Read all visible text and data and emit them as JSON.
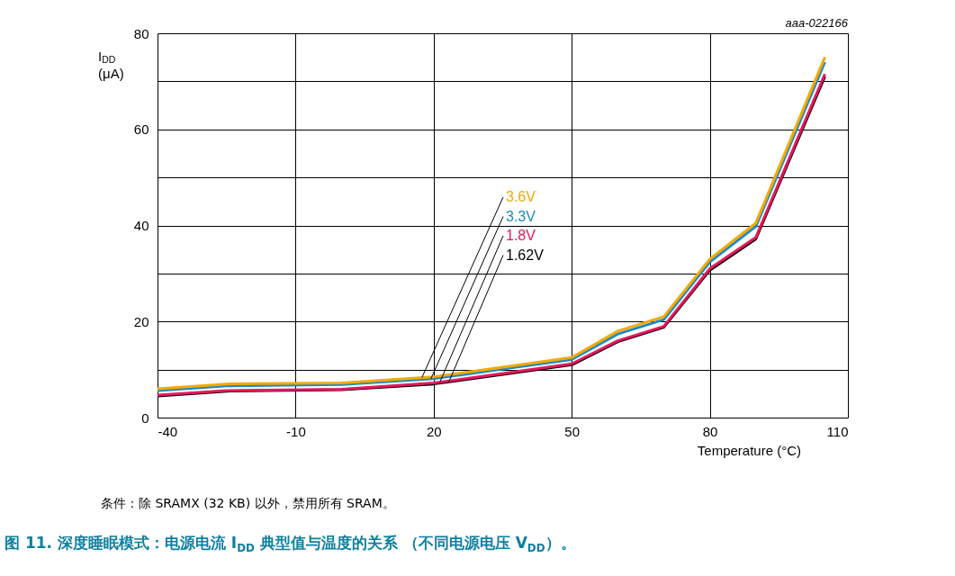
{
  "chart_data": {
    "type": "line",
    "title": "图 11.   深度睡眠模式：电源电流 I$_{DD}$ 典型值与温度的关系 （不同电源电压 V$_{DD}$）。",
    "xlabel": "Temperature (°C)",
    "ylabel": "I$_{DD}$ (μA)",
    "x": [
      -40,
      -25,
      0,
      20,
      35,
      50,
      60,
      70,
      80,
      90,
      105
    ],
    "series": [
      {
        "name": "3.6V",
        "color": "#f5a800",
        "values": [
          6.0,
          7.0,
          7.2,
          8.5,
          10.5,
          12.5,
          18,
          21,
          33,
          40.5,
          75
        ]
      },
      {
        "name": "3.3V",
        "color": "#1e8bc3",
        "values": [
          5.6,
          6.6,
          6.9,
          8.1,
          10.1,
          12.1,
          17.4,
          20.4,
          32.4,
          39.8,
          74
        ]
      },
      {
        "name": "1.8V",
        "color": "#e5175c",
        "values": [
          4.7,
          5.6,
          5.9,
          7.2,
          9.2,
          11.2,
          16.0,
          19.0,
          31.0,
          37.5,
          71.5
        ]
      },
      {
        "name": "1.62V",
        "color": "#000000",
        "values": [
          4.5,
          5.5,
          5.8,
          7.0,
          9.0,
          11.0,
          15.8,
          18.8,
          30.7,
          37.2,
          71.0
        ]
      }
    ],
    "xlim": [
      -40,
      110
    ],
    "xticks": [
      -40,
      -10,
      20,
      50,
      80,
      110
    ],
    "ylim": [
      0,
      80
    ],
    "yticks": [
      0,
      {
        "value": 10,
        "label": null
      },
      20,
      {
        "value": 30,
        "label": null
      },
      40,
      {
        "value": 50,
        "label": null
      },
      60,
      {
        "value": 70,
        "label": null
      },
      80
    ],
    "grid": true,
    "legend": false,
    "marker": "none",
    "line_style": "solid",
    "annotations": [
      "aaa-022166",
      "条件：除 SRAMX (32 KB) 以外，禁用所有 SRAM。"
    ]
  }
}
